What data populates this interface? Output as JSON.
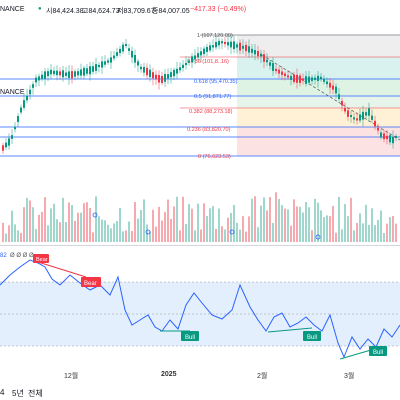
{
  "header": {
    "symbol_fragment": "NANCE",
    "open": "시84,424.38",
    "high": "고84,624.73",
    "low": "저83,709.67",
    "close": "종84,007.05",
    "change": "−417.33 (−0.49%)",
    "colors": {
      "up": "#089981",
      "down": "#f23645"
    }
  },
  "fib": {
    "levels": [
      {
        "text": "1 (107,120.00)"
      },
      {
        "text": "0.786 (101,8..16)"
      },
      {
        "text": "0.618 (95,470.35)"
      },
      {
        "text": "0.5 (91,871.77)"
      },
      {
        "text": "0.382 (88,273.18)"
      },
      {
        "text": "0.236 (83,820.70)"
      },
      {
        "text": "0 (76,623.53)"
      }
    ]
  },
  "rsi": {
    "value_fragment": "82",
    "dots": "Ø Ø Ø Ø",
    "labels": {
      "bear": "Bear",
      "bull1": "Bull",
      "bull2": "Bull",
      "bull3": "Bull"
    }
  },
  "time_axis": [
    "12월",
    "2025",
    "2월",
    "3월"
  ],
  "footer": [
    "4",
    "5년",
    "전체"
  ]
}
